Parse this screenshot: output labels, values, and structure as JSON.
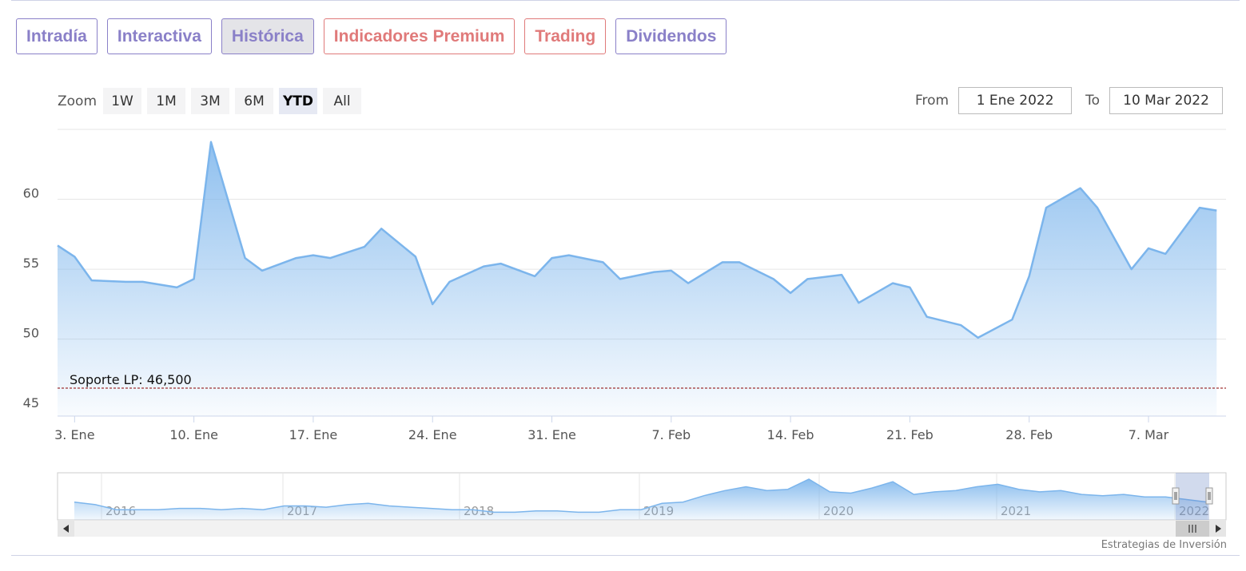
{
  "tabs": [
    {
      "label": "Intradía",
      "kind": "normal",
      "active": false
    },
    {
      "label": "Interactiva",
      "kind": "normal",
      "active": false
    },
    {
      "label": "Histórica",
      "kind": "normal",
      "active": true
    },
    {
      "label": "Indicadores Premium",
      "kind": "premium",
      "active": false
    },
    {
      "label": "Trading",
      "kind": "premium",
      "active": false
    },
    {
      "label": "Dividendos",
      "kind": "normal",
      "active": false
    }
  ],
  "zoom": {
    "label": "Zoom",
    "buttons": [
      "1W",
      "1M",
      "3M",
      "6M",
      "YTD",
      "All"
    ],
    "selected": "YTD"
  },
  "range": {
    "from_label": "From",
    "from_value": "1 Ene 2022",
    "to_label": "To",
    "to_value": "10 Mar 2022"
  },
  "credit": "Estrategias de Inversión",
  "colors": {
    "tab": "#8a80c8",
    "premium": "#e07a7a",
    "line": "#7cb5ec",
    "support": "#8b0000"
  },
  "chart_data": {
    "type": "area",
    "title": "",
    "xlabel": "",
    "ylabel": "",
    "ylim": [
      44.5,
      65
    ],
    "yticks": [
      45,
      50,
      55,
      60
    ],
    "grid": true,
    "xticks": [
      {
        "date": "2022-01-03",
        "label": "3. Ene"
      },
      {
        "date": "2022-01-10",
        "label": "10. Ene"
      },
      {
        "date": "2022-01-17",
        "label": "17. Ene"
      },
      {
        "date": "2022-01-24",
        "label": "24. Ene"
      },
      {
        "date": "2022-01-31",
        "label": "31. Ene"
      },
      {
        "date": "2022-02-07",
        "label": "7. Feb"
      },
      {
        "date": "2022-02-14",
        "label": "14. Feb"
      },
      {
        "date": "2022-02-21",
        "label": "21. Feb"
      },
      {
        "date": "2022-02-28",
        "label": "28. Feb"
      },
      {
        "date": "2022-03-07",
        "label": "7. Mar"
      }
    ],
    "xrange": [
      "2022-01-02",
      "2022-03-10"
    ],
    "series": [
      {
        "points": [
          [
            "2022-01-02",
            56.7
          ],
          [
            "2022-01-03",
            55.9
          ],
          [
            "2022-01-04",
            54.2
          ],
          [
            "2022-01-06",
            54.1
          ],
          [
            "2022-01-07",
            54.1
          ],
          [
            "2022-01-09",
            53.7
          ],
          [
            "2022-01-10",
            54.3
          ],
          [
            "2022-01-11",
            64.1
          ],
          [
            "2022-01-13",
            55.8
          ],
          [
            "2022-01-14",
            54.9
          ],
          [
            "2022-01-16",
            55.8
          ],
          [
            "2022-01-17",
            56.0
          ],
          [
            "2022-01-18",
            55.8
          ],
          [
            "2022-01-20",
            56.6
          ],
          [
            "2022-01-21",
            57.9
          ],
          [
            "2022-01-23",
            55.9
          ],
          [
            "2022-01-24",
            52.5
          ],
          [
            "2022-01-25",
            54.1
          ],
          [
            "2022-01-27",
            55.2
          ],
          [
            "2022-01-28",
            55.4
          ],
          [
            "2022-01-30",
            54.5
          ],
          [
            "2022-01-31",
            55.8
          ],
          [
            "2022-02-01",
            56.0
          ],
          [
            "2022-02-03",
            55.5
          ],
          [
            "2022-02-04",
            54.3
          ],
          [
            "2022-02-06",
            54.8
          ],
          [
            "2022-02-07",
            54.9
          ],
          [
            "2022-02-08",
            54.0
          ],
          [
            "2022-02-10",
            55.5
          ],
          [
            "2022-02-11",
            55.5
          ],
          [
            "2022-02-13",
            54.3
          ],
          [
            "2022-02-14",
            53.3
          ],
          [
            "2022-02-15",
            54.3
          ],
          [
            "2022-02-17",
            54.6
          ],
          [
            "2022-02-18",
            52.6
          ],
          [
            "2022-02-20",
            54.0
          ],
          [
            "2022-02-21",
            53.7
          ],
          [
            "2022-02-22",
            51.6
          ],
          [
            "2022-02-24",
            51.0
          ],
          [
            "2022-02-25",
            50.1
          ],
          [
            "2022-02-27",
            51.4
          ],
          [
            "2022-02-28",
            54.5
          ],
          [
            "2022-03-01",
            59.4
          ],
          [
            "2022-03-03",
            60.8
          ],
          [
            "2022-03-04",
            59.4
          ],
          [
            "2022-03-06",
            55.0
          ],
          [
            "2022-03-07",
            56.5
          ],
          [
            "2022-03-08",
            56.1
          ],
          [
            "2022-03-10",
            59.4
          ],
          [
            "2022-03-11",
            59.2
          ]
        ]
      }
    ],
    "support_line": {
      "label": "Soporte LP: 46,500",
      "value": 46.5
    },
    "navigator": {
      "year_labels": [
        "2016",
        "2017",
        "2018",
        "2019",
        "2020",
        "2021",
        "2022"
      ],
      "values": [
        52,
        50,
        46,
        46,
        46,
        47,
        47,
        46,
        47,
        46,
        49,
        49,
        48,
        50,
        51,
        49,
        48,
        47,
        46,
        46,
        44,
        44,
        45,
        45,
        44,
        44,
        46,
        46,
        51,
        52,
        57,
        61,
        64,
        61,
        62,
        70,
        60,
        59,
        63,
        68,
        58,
        60,
        61,
        64,
        66,
        62,
        60,
        61,
        58,
        57,
        58,
        56,
        56,
        54,
        52
      ]
    }
  }
}
